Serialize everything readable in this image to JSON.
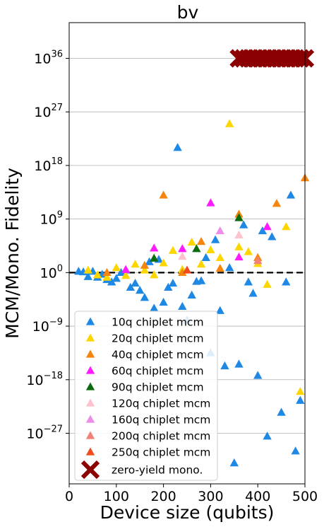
{
  "chart_data": {
    "type": "scatter",
    "title": "bv",
    "xlabel": "Device size (qubits)",
    "ylabel": "MCM/Mono. Fidelity",
    "xlim": [
      0,
      500
    ],
    "ylim_log10": [
      -35.5,
      42
    ],
    "y_scale": "log",
    "grid": "horizontal major lines",
    "reference_line": {
      "y": 1,
      "style": "black dashed"
    },
    "legend_location": "lower-left",
    "x_ticks": [
      "0",
      "100",
      "200",
      "300",
      "400",
      "500"
    ],
    "y_ticks": [
      {
        "base": "10",
        "exp": "36",
        "log10": 36
      },
      {
        "base": "10",
        "exp": "27",
        "log10": 27
      },
      {
        "base": "10",
        "exp": "18",
        "log10": 18
      },
      {
        "base": "10",
        "exp": "9",
        "log10": 9
      },
      {
        "base": "10",
        "exp": "0",
        "log10": 0
      },
      {
        "base": "10",
        "exp": "−9",
        "log10": -9
      },
      {
        "base": "10",
        "exp": "−18",
        "log10": -18
      },
      {
        "base": "10",
        "exp": "−27",
        "log10": -27
      }
    ],
    "series": [
      {
        "name": "10q chiplet mcm",
        "color": "#1e88e5",
        "marker": "triangle",
        "points_log10": [
          [
            20,
            0.2
          ],
          [
            30,
            0.1
          ],
          [
            40,
            -0.7
          ],
          [
            50,
            0.2
          ],
          [
            60,
            -0.8
          ],
          [
            70,
            -0.3
          ],
          [
            80,
            -1.2
          ],
          [
            90,
            -1.6
          ],
          [
            100,
            -1.0
          ],
          [
            110,
            0
          ],
          [
            120,
            0.4
          ],
          [
            130,
            -2.5
          ],
          [
            140,
            -1.8
          ],
          [
            150,
            -3
          ],
          [
            160,
            -4.2
          ],
          [
            170,
            1.8
          ],
          [
            180,
            -6
          ],
          [
            190,
            2.2
          ],
          [
            200,
            -5
          ],
          [
            210,
            -2.5
          ],
          [
            220,
            -1.8
          ],
          [
            230,
            21
          ],
          [
            240,
            -5.7
          ],
          [
            250,
            -8
          ],
          [
            260,
            -3.8
          ],
          [
            270,
            -1.5
          ],
          [
            280,
            -1.4
          ],
          [
            290,
            2.5
          ],
          [
            300,
            -13.5
          ],
          [
            310,
            5.5
          ],
          [
            320,
            -6.4
          ],
          [
            330,
            -15.7
          ],
          [
            340,
            0.8
          ],
          [
            350,
            -32
          ],
          [
            360,
            -15.4
          ],
          [
            370,
            8
          ],
          [
            380,
            -1.6
          ],
          [
            390,
            -3.5
          ],
          [
            400,
            -17.3
          ],
          [
            410,
            7
          ],
          [
            420,
            -27.5
          ],
          [
            430,
            6
          ],
          [
            450,
            -23.5
          ],
          [
            460,
            -1.6
          ],
          [
            470,
            13
          ],
          [
            480,
            -30
          ],
          [
            490,
            -21.5
          ]
        ]
      },
      {
        "name": "20q chiplet mcm",
        "color": "#fdd600",
        "marker": "triangle",
        "points_log10": [
          [
            40,
            0.4
          ],
          [
            60,
            -0.4
          ],
          [
            80,
            -0.8
          ],
          [
            100,
            0.8
          ],
          [
            120,
            -0.5
          ],
          [
            140,
            1.4
          ],
          [
            160,
            0.4
          ],
          [
            180,
            -0.4
          ],
          [
            200,
            1.6
          ],
          [
            220,
            3.7
          ],
          [
            240,
            0.5
          ],
          [
            260,
            5.1
          ],
          [
            280,
            1.4
          ],
          [
            300,
            3.8
          ],
          [
            320,
            2.5
          ],
          [
            340,
            25
          ],
          [
            360,
            4.3
          ],
          [
            370,
            36.5
          ],
          [
            380,
            3.5
          ],
          [
            400,
            1.5
          ],
          [
            420,
            -2
          ],
          [
            460,
            7.7
          ],
          [
            490,
            -20
          ]
        ]
      },
      {
        "name": "40q chiplet mcm",
        "color": "#f5850d",
        "marker": "triangle",
        "points_log10": [
          [
            80,
            0
          ],
          [
            160,
            1.2
          ],
          [
            200,
            13
          ],
          [
            240,
            0
          ],
          [
            280,
            5.2
          ],
          [
            320,
            0.7
          ],
          [
            360,
            9.8
          ],
          [
            400,
            2.5
          ],
          [
            440,
            11.6
          ],
          [
            500,
            15.9
          ]
        ]
      },
      {
        "name": "60q chiplet mcm",
        "color": "#ff1aff",
        "marker": "triangle",
        "points_log10": [
          [
            120,
            0.5
          ],
          [
            180,
            4.1
          ],
          [
            240,
            4.0
          ],
          [
            300,
            11.7
          ],
          [
            360,
            2.6
          ],
          [
            420,
            7.7
          ]
        ]
      },
      {
        "name": "90q chiplet mcm",
        "color": "#0c6b0c",
        "marker": "triangle",
        "points_log10": [
          [
            180,
            2.4
          ],
          [
            270,
            4
          ],
          [
            360,
            9.2
          ]
        ]
      },
      {
        "name": "120q chiplet mcm",
        "color": "#ffc1cb",
        "marker": "triangle",
        "points_log10": [
          [
            240,
            2.7
          ],
          [
            360,
            6.3
          ]
        ]
      },
      {
        "name": "160q chiplet mcm",
        "color": "#ec8dea",
        "marker": "triangle",
        "points_log10": [
          [
            320,
            7
          ]
        ]
      },
      {
        "name": "200q chiplet mcm",
        "color": "#f28277",
        "marker": "triangle",
        "points_log10": [
          [
            400,
            2
          ]
        ]
      },
      {
        "name": "250q chiplet mcm",
        "color": "#f04a1d",
        "marker": "triangle",
        "points_log10": [
          [
            250,
            0.4
          ]
        ]
      },
      {
        "name": "zero-yield mono.",
        "color": "#8b0000",
        "marker": "x",
        "points_log10": [
          [
            360,
            36
          ],
          [
            370,
            36
          ],
          [
            380,
            36
          ],
          [
            390,
            36
          ],
          [
            400,
            36
          ],
          [
            410,
            36
          ],
          [
            420,
            36
          ],
          [
            430,
            36
          ],
          [
            440,
            36
          ],
          [
            450,
            36
          ],
          [
            460,
            36
          ],
          [
            470,
            36
          ],
          [
            480,
            36
          ],
          [
            490,
            36
          ],
          [
            500,
            36
          ]
        ]
      }
    ]
  }
}
